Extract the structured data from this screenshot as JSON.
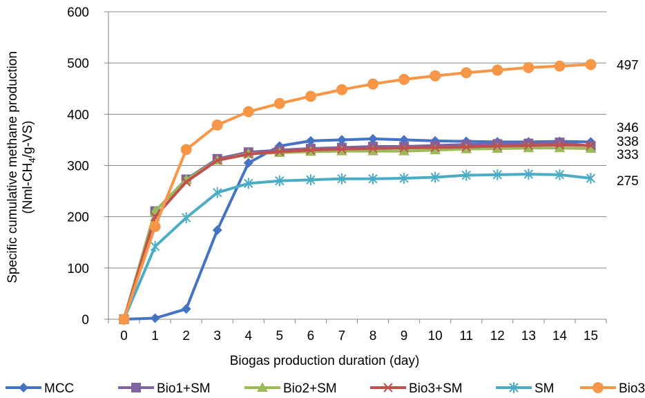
{
  "chart_data": {
    "type": "line",
    "title": "",
    "xlabel": "Biogas production duration (day)",
    "ylabel_line1": "Specific cumulative  methane production",
    "ylabel_line2": {
      "pre": "(Nml-CH",
      "sub": "4",
      "post": "/g-VS)"
    },
    "x": [
      0,
      1,
      2,
      3,
      4,
      5,
      6,
      7,
      8,
      9,
      10,
      11,
      12,
      13,
      14,
      15
    ],
    "xlim": [
      -0.5,
      15.5
    ],
    "ylim": [
      0,
      600
    ],
    "yticks": [
      0,
      100,
      200,
      300,
      400,
      500,
      600
    ],
    "grid": "horizontal",
    "legend_position": "bottom",
    "series": [
      {
        "name": "MCC",
        "color": "#4472c4",
        "marker": "diamond",
        "values": [
          0,
          2,
          20,
          174,
          305,
          338,
          348,
          350,
          352,
          350,
          348,
          347,
          346,
          346,
          347,
          346
        ]
      },
      {
        "name": "Bio1+SM",
        "color": "#8064a2",
        "marker": "square",
        "values": [
          0,
          211,
          273,
          313,
          326,
          330,
          333,
          335,
          337,
          337,
          339,
          341,
          342,
          343,
          345,
          338
        ]
      },
      {
        "name": "Bio2+SM",
        "color": "#9bbb59",
        "marker": "triangle",
        "values": [
          0,
          211,
          272,
          310,
          323,
          325,
          327,
          328,
          328,
          328,
          330,
          332,
          333,
          334,
          334,
          333
        ]
      },
      {
        "name": "Bio3+SM",
        "color": "#c0504d",
        "marker": "x",
        "values": [
          0,
          200,
          268,
          310,
          322,
          327,
          330,
          332,
          333,
          334,
          335,
          336,
          338,
          339,
          340,
          339
        ]
      },
      {
        "name": "SM",
        "color": "#4bacc6",
        "marker": "asterisk",
        "values": [
          0,
          142,
          198,
          247,
          265,
          270,
          272,
          274,
          274,
          275,
          277,
          281,
          282,
          283,
          282,
          275
        ]
      },
      {
        "name": "Bio3",
        "color": "#f79646",
        "marker": "circle",
        "values": [
          0,
          181,
          331,
          379,
          405,
          421,
          435,
          448,
          459,
          468,
          475,
          481,
          486,
          491,
          494,
          497
        ]
      }
    ],
    "end_labels": [
      "497",
      "346",
      "338",
      "333",
      "275"
    ]
  }
}
